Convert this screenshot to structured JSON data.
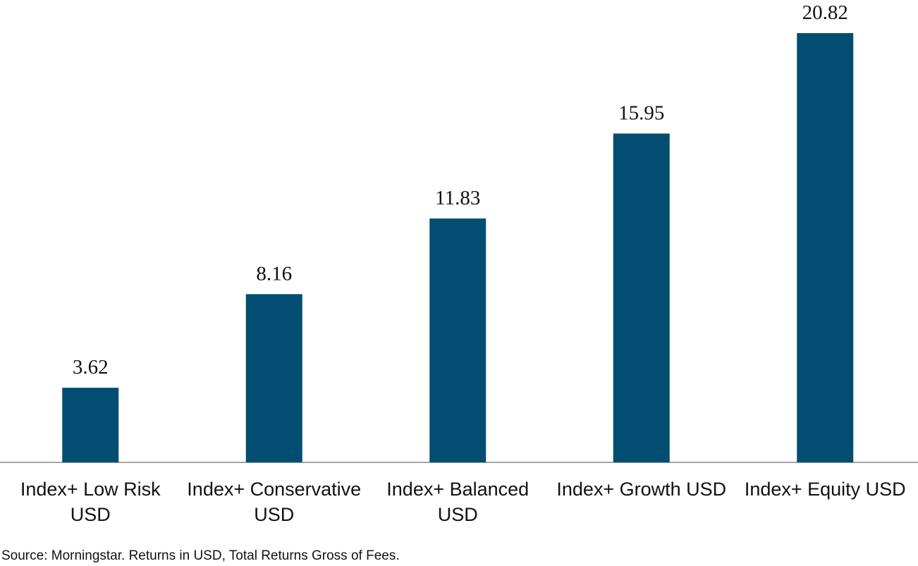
{
  "chart_data": {
    "type": "bar",
    "categories": [
      "Index+ Low Risk USD",
      "Index+ Conservative USD",
      "Index+ Balanced USD",
      "Index+ Growth USD",
      "Index+ Equity USD"
    ],
    "values": [
      3.62,
      8.16,
      11.83,
      15.95,
      20.82
    ],
    "color": "#024e73",
    "source": "Source: Morningstar. Returns in USD, Total Returns Gross of Fees."
  }
}
